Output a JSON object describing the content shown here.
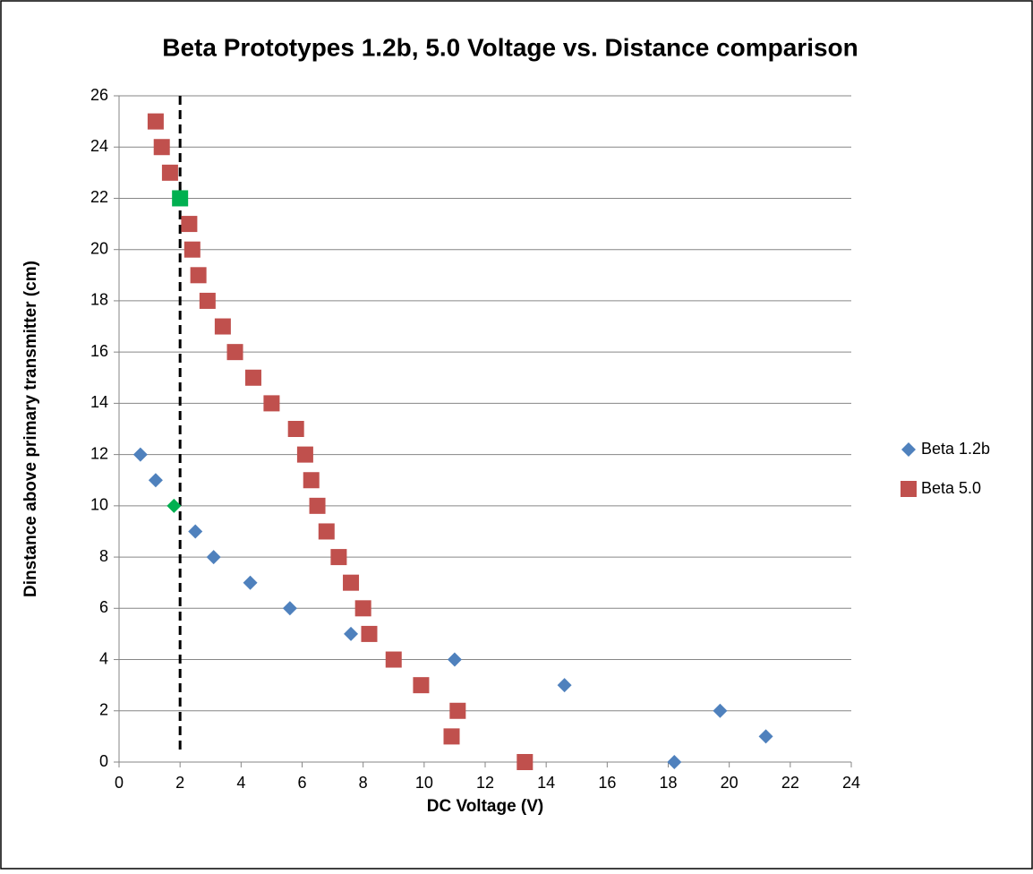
{
  "chart_data": {
    "type": "scatter",
    "title": "Beta Prototypes 1.2b, 5.0 Voltage vs. Distance comparison",
    "x_label": "DC Voltage (V)",
    "y_label": "Dinstance above primary transmitter (cm)",
    "xlim": [
      0,
      24
    ],
    "xticks": [
      0,
      2,
      4,
      6,
      8,
      10,
      12,
      14,
      16,
      18,
      20,
      22,
      24
    ],
    "ylim": [
      0,
      26
    ],
    "yticks": [
      0,
      2,
      4,
      6,
      8,
      10,
      12,
      14,
      16,
      18,
      20,
      22,
      24,
      26
    ],
    "grid": true,
    "legend": "right",
    "reference_line": {
      "x": 2,
      "color": "#000000",
      "style": "dashed"
    },
    "series": [
      {
        "name": "Beta 1.2b",
        "color": "#4f81bd",
        "marker": "diamond",
        "highlight_index": 2,
        "highlight_color": "#00b050",
        "x": [
          0.7,
          1.2,
          1.8,
          2.5,
          3.1,
          4.3,
          5.6,
          7.6,
          11.0,
          14.6,
          19.7,
          21.2,
          18.2
        ],
        "values": [
          12,
          11,
          10,
          9,
          8,
          7,
          6,
          5,
          4,
          3,
          2,
          1,
          0
        ]
      },
      {
        "name": "Beta 5.0",
        "color": "#c0504d",
        "marker": "square",
        "highlight_index": 3,
        "highlight_color": "#00b050",
        "x": [
          1.2,
          1.4,
          1.67,
          2.0,
          2.3,
          2.4,
          2.6,
          2.9,
          3.4,
          3.8,
          4.4,
          5.0,
          5.8,
          6.1,
          6.3,
          6.5,
          6.8,
          7.2,
          7.6,
          8.0,
          8.2,
          9.0,
          9.9,
          11.1,
          10.9,
          13.3
        ],
        "values": [
          25,
          24,
          23,
          22,
          21,
          20,
          19,
          18,
          17,
          16,
          15,
          14,
          13,
          12,
          11,
          10,
          9,
          8,
          7,
          6,
          5,
          4,
          3,
          2,
          1,
          0
        ]
      }
    ]
  }
}
